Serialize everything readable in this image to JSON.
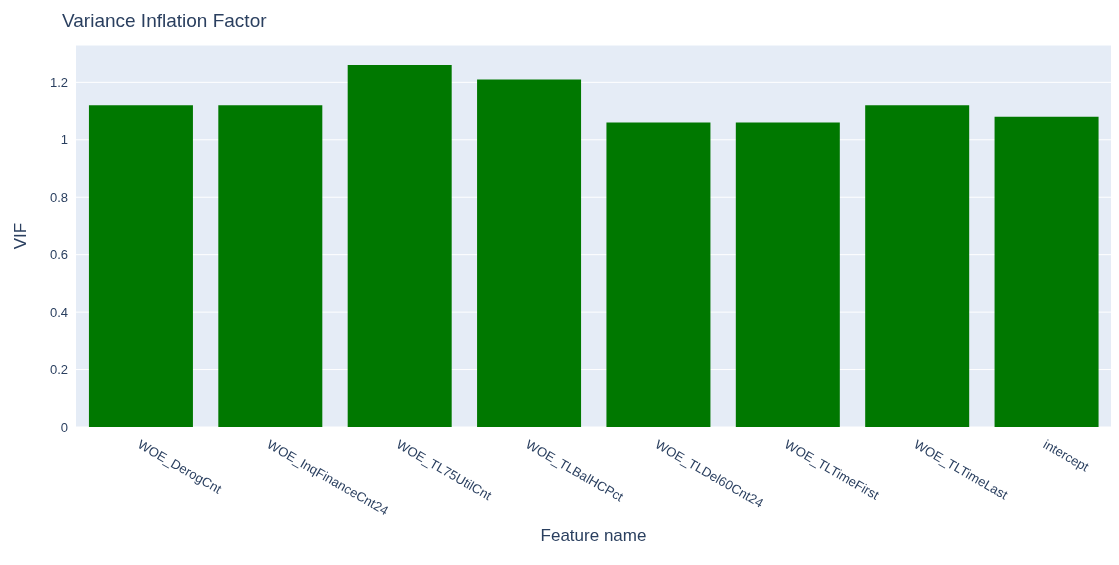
{
  "chart_data": {
    "type": "bar",
    "title": "Variance Inflation Factor",
    "xlabel": "Feature name",
    "ylabel": "VIF",
    "categories": [
      "WOE_DerogCnt",
      "WOE_InqFinanceCnt24",
      "WOE_TL75UtilCnt",
      "WOE_TLBalHCPct",
      "WOE_TLDel60Cnt24",
      "WOE_TLTimeFirst",
      "WOE_TLTimeLast",
      "intercept"
    ],
    "values": [
      1.12,
      1.12,
      1.26,
      1.21,
      1.06,
      1.06,
      1.12,
      1.08
    ],
    "color": "#007800",
    "ylim": [
      0,
      1.33
    ],
    "yticks": [
      0,
      0.2,
      0.4,
      0.6,
      0.8,
      1,
      1.2
    ],
    "grid": "y"
  }
}
